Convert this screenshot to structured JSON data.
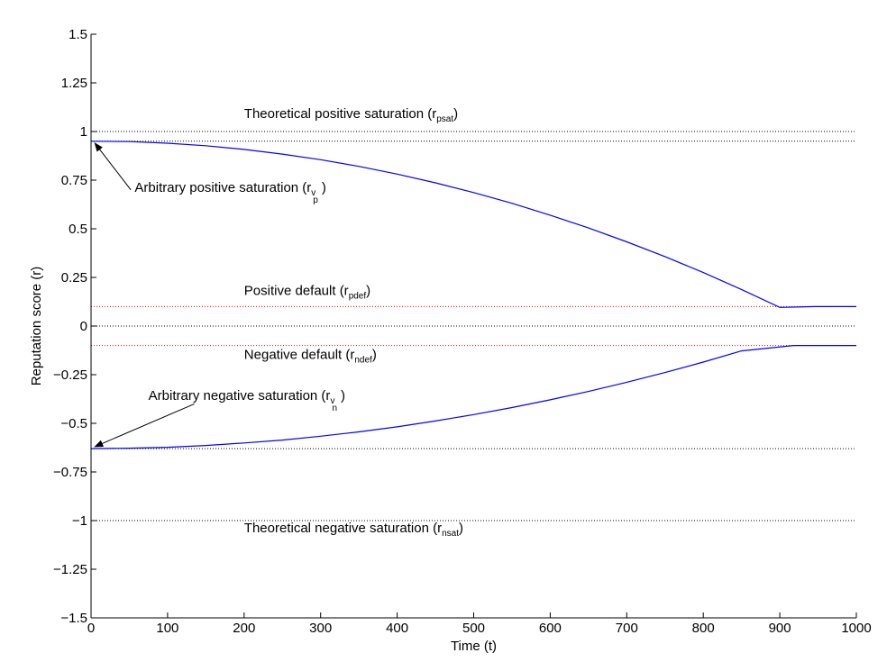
{
  "chart_data": {
    "type": "line",
    "xlabel": "Time (t)",
    "ylabel": "Reputation score (r)",
    "xlim": [
      0,
      1000
    ],
    "ylim": [
      -1.5,
      1.5
    ],
    "xticks": [
      0,
      100,
      200,
      300,
      400,
      500,
      600,
      700,
      800,
      900,
      1000
    ],
    "xtick_labels": [
      "0",
      "100",
      "200",
      "300",
      "400",
      "500",
      "600",
      "700",
      "800",
      "900",
      "1000"
    ],
    "yticks": [
      1.5,
      1.25,
      1,
      0.75,
      0.5,
      0.25,
      0,
      -0.25,
      -0.5,
      -0.75,
      -1,
      -1.25,
      -1.5
    ],
    "ytick_labels": [
      "1.5",
      "1.25",
      "1",
      "0.75",
      "0.5",
      "0.25",
      "0",
      "−0.25",
      "−0.5",
      "−0.75",
      "−1",
      "−1.25",
      "−1.5"
    ],
    "grid": false,
    "series": [
      {
        "color": "#0000ff",
        "style": "solid",
        "x": [
          0,
          50,
          100,
          150,
          200,
          250,
          300,
          350,
          400,
          450,
          500,
          550,
          600,
          650,
          700,
          750,
          800,
          850,
          900,
          945,
          1000
        ],
        "y": [
          0.95,
          0.948,
          0.94,
          0.927,
          0.908,
          0.884,
          0.855,
          0.821,
          0.781,
          0.736,
          0.686,
          0.631,
          0.57,
          0.504,
          0.433,
          0.357,
          0.275,
          0.188,
          0.096,
          0.1,
          0.1
        ]
      },
      {
        "color": "#0000ff",
        "style": "solid",
        "x": [
          0,
          50,
          100,
          150,
          200,
          250,
          300,
          350,
          400,
          450,
          500,
          550,
          600,
          650,
          700,
          750,
          800,
          850,
          918,
          1000
        ],
        "y": [
          -0.63,
          -0.628,
          -0.623,
          -0.614,
          -0.601,
          -0.586,
          -0.566,
          -0.544,
          -0.518,
          -0.488,
          -0.455,
          -0.419,
          -0.379,
          -0.336,
          -0.289,
          -0.239,
          -0.185,
          -0.128,
          -0.1,
          -0.1
        ]
      }
    ],
    "reference_lines": [
      {
        "y": 1.0,
        "color": "#000000",
        "style": "dotted"
      },
      {
        "y": 0.95,
        "color": "#000000",
        "style": "dotted"
      },
      {
        "y": 0.1,
        "color": "#ff0000",
        "style": "dotted"
      },
      {
        "y": 0.0,
        "color": "#000000",
        "style": "dotted"
      },
      {
        "y": -0.1,
        "color": "#ff0000",
        "style": "dotted"
      },
      {
        "y": -0.63,
        "color": "#000000",
        "style": "dotted"
      },
      {
        "y": -1.0,
        "color": "#000000",
        "style": "dotted"
      }
    ],
    "annotations": [
      {
        "text": "Theoretical positive saturation (r",
        "sub": "psat",
        "close": ")",
        "x": 200,
        "y": 1.07
      },
      {
        "text": "Arbitrary positive saturation (r",
        "sub": "v",
        "sub2": "p",
        "close": ")",
        "x": 57,
        "y": 0.69
      },
      {
        "text": "Positive default (r",
        "sub": "pdef",
        "close": ")",
        "x": 200,
        "y": 0.16
      },
      {
        "text": "Negative default (r",
        "sub": "ndef",
        "close": ")",
        "x": 200,
        "y": -0.17
      },
      {
        "text": "Arbitrary negative saturation (r",
        "sub": "v",
        "sub2": "n",
        "close": ")",
        "x": 75,
        "y": -0.38
      },
      {
        "text": "Theoretical negative saturation (r",
        "sub": "nsat",
        "close": ")",
        "x": 200,
        "y": -1.06
      }
    ],
    "arrows": [
      {
        "from": [
          52,
          0.7
        ],
        "to": [
          5,
          0.94
        ]
      },
      {
        "from": [
          135,
          -0.4
        ],
        "to": [
          5,
          -0.62
        ]
      }
    ]
  }
}
